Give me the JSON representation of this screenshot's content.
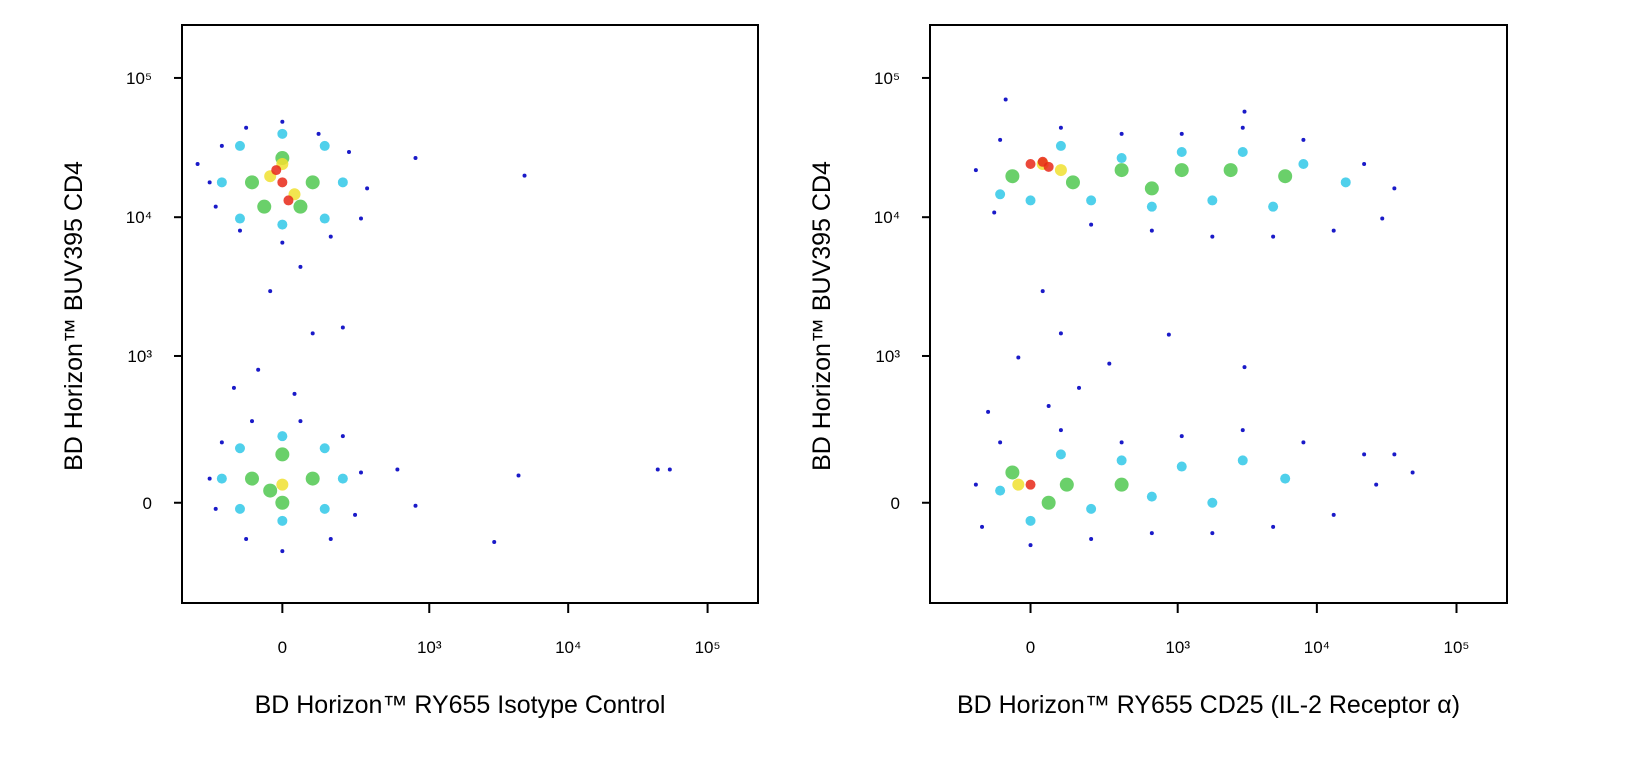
{
  "chart_data": [
    {
      "type": "scatter",
      "xlabel": "BD Horizon™ RY655 Isotype Control",
      "ylabel": "BD Horizon™ BUV395  CD4",
      "xscale": "asinh",
      "yscale": "asinh",
      "xlim": [
        -450,
        230000
      ],
      "ylim": [
        -450,
        240000
      ],
      "xticks": [
        0,
        {
          "value": 1000,
          "label": "10³"
        },
        {
          "value": 10000,
          "label": "10⁴"
        },
        {
          "value": 100000,
          "label": "10⁵"
        }
      ],
      "yticks": [
        0,
        {
          "value": 1000,
          "label": "10³"
        },
        {
          "value": 10000,
          "label": "10⁴"
        },
        {
          "value": 100000,
          "label": "10⁵"
        }
      ],
      "series": [
        {
          "color": "#1a1ac8",
          "x": [
            -269,
            -209,
            -113,
            0,
            113,
            238,
            339,
            302,
            158,
            0,
            -135,
            -238,
            -339,
            54,
            -36,
            93,
            -73,
            36,
            209,
            -158,
            793,
            4860,
            -269,
            -209,
            -93,
            54,
            209,
            302,
            269,
            158,
            0,
            -113,
            -238,
            582,
            793,
            4400,
            2944,
            43900,
            53600
          ],
          "y": [
            17800,
            32500,
            43900,
            48500,
            39700,
            29400,
            16100,
            9780,
            7250,
            6560,
            8010,
            11900,
            24100,
            4400,
            2944,
            1460,
            793,
            524,
            1610,
            582,
            26600,
            19900,
            73,
            209,
            320,
            320,
            238,
            93,
            -36,
            -113,
            -158,
            -113,
            -18,
            103,
            -9,
            83,
            -124,
            103,
            103
          ]
        },
        {
          "color": "#30c8e8",
          "x": [
            -209,
            -135,
            0,
            135,
            209,
            135,
            0,
            -135,
            -209,
            -135,
            0,
            135,
            209,
            135,
            0,
            -135
          ],
          "y": [
            17800,
            32500,
            39700,
            32500,
            17800,
            9780,
            8850,
            9780,
            73,
            183,
            238,
            183,
            73,
            -18,
            -54,
            -18
          ]
        },
        {
          "color": "#50c850",
          "x": [
            -93,
            0,
            93,
            -54,
            54,
            -93,
            0,
            93,
            0,
            -36
          ],
          "y": [
            17800,
            26600,
            17800,
            11900,
            11900,
            73,
            158,
            73,
            0,
            36
          ]
        },
        {
          "color": "#f0e030",
          "x": [
            -36,
            36,
            0,
            0
          ],
          "y": [
            19700,
            14600,
            24100,
            54
          ]
        },
        {
          "color": "#e82818",
          "x": [
            0,
            -18,
            18
          ],
          "y": [
            17800,
            21800,
            13200
          ]
        }
      ]
    },
    {
      "type": "scatter",
      "xlabel": "BD Horizon™ RY655 CD25 (IL-2 Receptor α)",
      "ylabel": "BD Horizon™ BUV395  CD4",
      "xscale": "asinh",
      "yscale": "asinh",
      "xlim": [
        -450,
        230000
      ],
      "ylim": [
        -450,
        240000
      ],
      "xticks": [
        0,
        {
          "value": 1000,
          "label": "10³"
        },
        {
          "value": 10000,
          "label": "10⁴"
        },
        {
          "value": 100000,
          "label": "10⁵"
        }
      ],
      "yticks": [
        0,
        {
          "value": 1000,
          "label": "10³"
        },
        {
          "value": 10000,
          "label": "10⁴"
        },
        {
          "value": 100000,
          "label": "10⁵"
        }
      ],
      "series": [
        {
          "color": "#1a1ac8",
          "x": [
            -183,
            -93,
            93,
            380,
            1070,
            2944,
            8010,
            21800,
            35900,
            29400,
            13200,
            4860,
            1780,
            646,
            209,
            -113,
            -75,
            3030,
            36,
            93,
            -36,
            158,
            54,
            302,
            862,
            -135,
            3030,
            -183,
            -93,
            93,
            380,
            1070,
            2944,
            8010,
            21800,
            26600,
            13200,
            4860,
            1780,
            646,
            209,
            0,
            -158,
            35900,
            48500
          ],
          "y": [
            21800,
            35900,
            43900,
            39700,
            39700,
            43900,
            35900,
            24100,
            16100,
            9780,
            8010,
            7250,
            7250,
            8010,
            8850,
            10800,
            70000,
            57300,
            2944,
            1460,
            974,
            582,
            423,
            880,
            1430,
            380,
            828,
            54,
            209,
            269,
            209,
            238,
            269,
            209,
            158,
            54,
            -36,
            -73,
            -93,
            -93,
            -113,
            -135,
            -73,
            158,
            93
          ]
        },
        {
          "color": "#30c8e8",
          "x": [
            -93,
            93,
            380,
            1070,
            2944,
            8010,
            16100,
            4860,
            1780,
            646,
            209,
            0,
            -93,
            93,
            380,
            1070,
            2944,
            5930,
            1780,
            646,
            209,
            0
          ],
          "y": [
            14600,
            32500,
            26600,
            29400,
            29400,
            24100,
            17800,
            11900,
            13200,
            11900,
            13200,
            13200,
            36,
            158,
            135,
            113,
            135,
            73,
            0,
            18,
            -18,
            -54
          ]
        },
        {
          "color": "#50c850",
          "x": [
            -54,
            135,
            380,
            1070,
            2410,
            5930,
            646,
            -54,
            113,
            54,
            380
          ],
          "y": [
            19700,
            17800,
            21800,
            21800,
            21800,
            19700,
            16100,
            93,
            54,
            0,
            54
          ]
        },
        {
          "color": "#f0e030",
          "x": [
            36,
            93,
            -36
          ],
          "y": [
            24100,
            21800,
            54
          ]
        },
        {
          "color": "#e82818",
          "x": [
            0,
            36,
            54,
            0
          ],
          "y": [
            24100,
            25000,
            23000,
            54
          ]
        }
      ]
    }
  ]
}
